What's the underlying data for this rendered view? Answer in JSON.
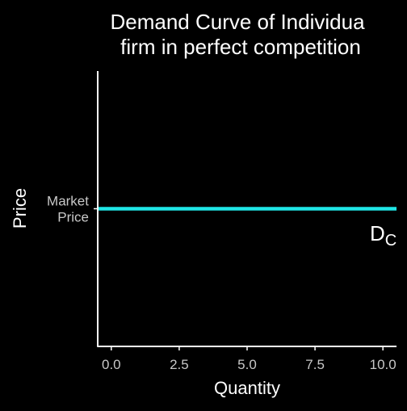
{
  "chart_data": {
    "type": "line",
    "title": [
      "Demand Curve of Individua",
      "firm in perfect competition"
    ],
    "xlabel": "Quantity",
    "ylabel": "Price",
    "xlim": [
      -0.5,
      10.5
    ],
    "x_ticks": [
      0,
      2.5,
      5,
      7.5,
      10
    ],
    "x_tick_labels": [
      "0.0",
      "2.5",
      "5.0",
      "7.5",
      "10.0"
    ],
    "y_tick_labels": [
      "Market",
      "Price"
    ],
    "series": [
      {
        "x": [
          -0.5,
          10.5
        ],
        "y": [
          1,
          1
        ],
        "color": "#1fe6e6",
        "label": {
          "main": "D",
          "subscript": "C"
        }
      }
    ],
    "grid": false,
    "legend": "none"
  },
  "colors": {
    "background": "#000000",
    "axis": "#ffffff",
    "tick_text": "#c8c8c8",
    "title_text": "#ffffff",
    "curve": "#1fe6e6"
  }
}
